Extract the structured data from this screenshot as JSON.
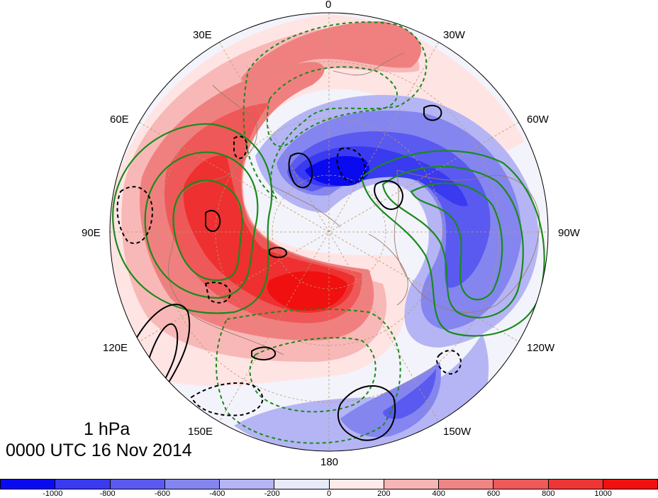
{
  "map": {
    "projection": "north polar stereographic",
    "level": "1 hPa",
    "valid_time": "0000 UTC 16 Nov 2014",
    "longitude_labels": [
      "0",
      "30W",
      "60W",
      "90W",
      "120W",
      "150W",
      "180",
      "150E",
      "120E",
      "90E",
      "60E",
      "30E"
    ],
    "shading_field": "anomaly (red positive, blue negative)",
    "contours": {
      "green_solid": "positive contours",
      "green_dashed": "negative contours",
      "black_solid": "positive contours",
      "black_dashed": "negative contours"
    }
  },
  "colorbar": {
    "levels": [
      "-1000",
      "-800",
      "-600",
      "-400",
      "-200",
      "0",
      "200",
      "400",
      "600",
      "800",
      "1000"
    ],
    "colors": [
      "#0a0af0",
      "#3a3af0",
      "#5a5af0",
      "#8585f0",
      "#b5b5f5",
      "#e8eafa",
      "#ffeaea",
      "#f8b5b5",
      "#f08585",
      "#ee5a5a",
      "#ee3535",
      "#f01010"
    ]
  }
}
